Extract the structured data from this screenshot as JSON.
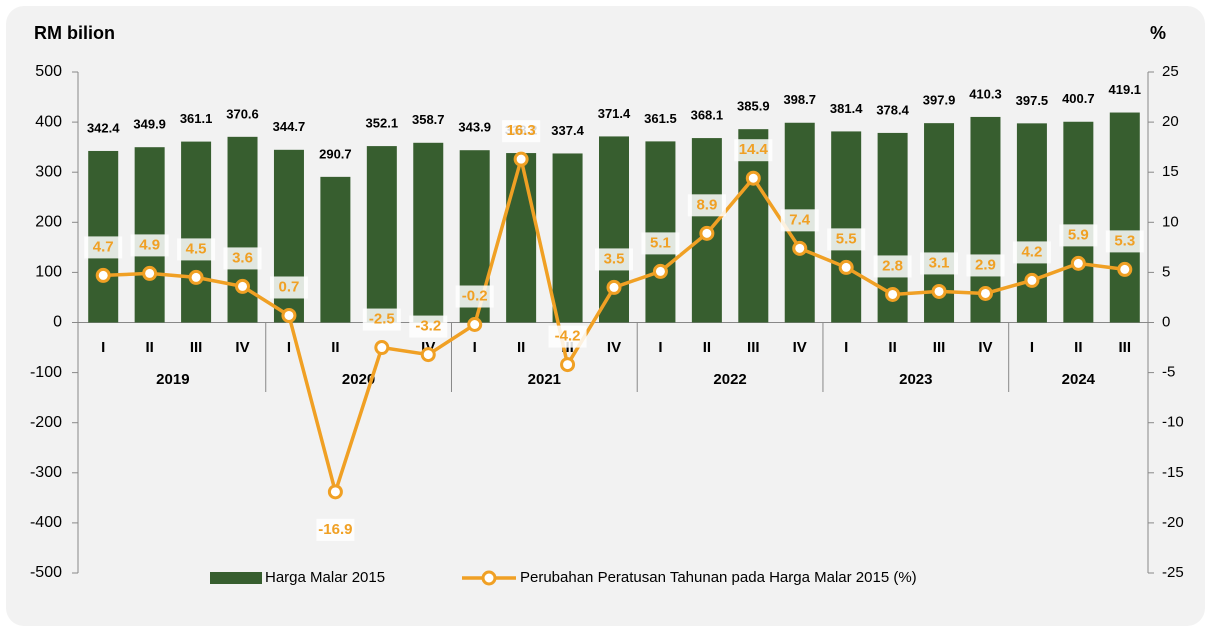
{
  "chart_data": {
    "type": "bar_line",
    "y_label": "RM bilion",
    "y2_label": "%",
    "groups": [
      {
        "name": "2019",
        "categories": [
          "I",
          "II",
          "III",
          "IV"
        ]
      },
      {
        "name": "2020",
        "categories": [
          "I",
          "II",
          "III",
          "IV"
        ]
      },
      {
        "name": "2021",
        "categories": [
          "I",
          "II",
          "III",
          "IV"
        ]
      },
      {
        "name": "2022",
        "categories": [
          "I",
          "II",
          "III",
          "IV"
        ]
      },
      {
        "name": "2023",
        "categories": [
          "I",
          "II",
          "III",
          "IV"
        ]
      },
      {
        "name": "2024",
        "categories": [
          "I",
          "II",
          "III"
        ]
      }
    ],
    "series": [
      {
        "name": "Harga Malar 2015",
        "type": "bar",
        "color": "#375e2f",
        "axis": "y",
        "values": [
          342.4,
          349.9,
          361.1,
          370.6,
          344.7,
          290.7,
          352.1,
          358.7,
          343.9,
          338.2,
          337.4,
          371.4,
          361.5,
          368.1,
          385.9,
          398.7,
          381.4,
          378.4,
          397.9,
          410.3,
          397.5,
          400.7,
          419.1
        ]
      },
      {
        "name": "Perubahan Peratusan Tahunan pada Harga Malar 2015 (%)",
        "type": "line",
        "color": "#f0a024",
        "axis": "y2",
        "values": [
          4.7,
          4.9,
          4.5,
          3.6,
          0.7,
          -16.9,
          -2.5,
          -3.2,
          -0.2,
          16.3,
          -4.2,
          3.5,
          5.1,
          8.9,
          14.4,
          7.4,
          5.5,
          2.8,
          3.1,
          2.9,
          4.2,
          5.9,
          5.3
        ]
      }
    ],
    "ylim": [
      -500,
      500
    ],
    "yticks": [
      -500,
      -400,
      -300,
      -200,
      -100,
      0,
      100,
      200,
      300,
      400,
      500
    ],
    "y2lim": [
      -25,
      25
    ],
    "y2ticks": [
      -25,
      -20,
      -15,
      -10,
      -5,
      0,
      5,
      10,
      15,
      20,
      25
    ]
  }
}
